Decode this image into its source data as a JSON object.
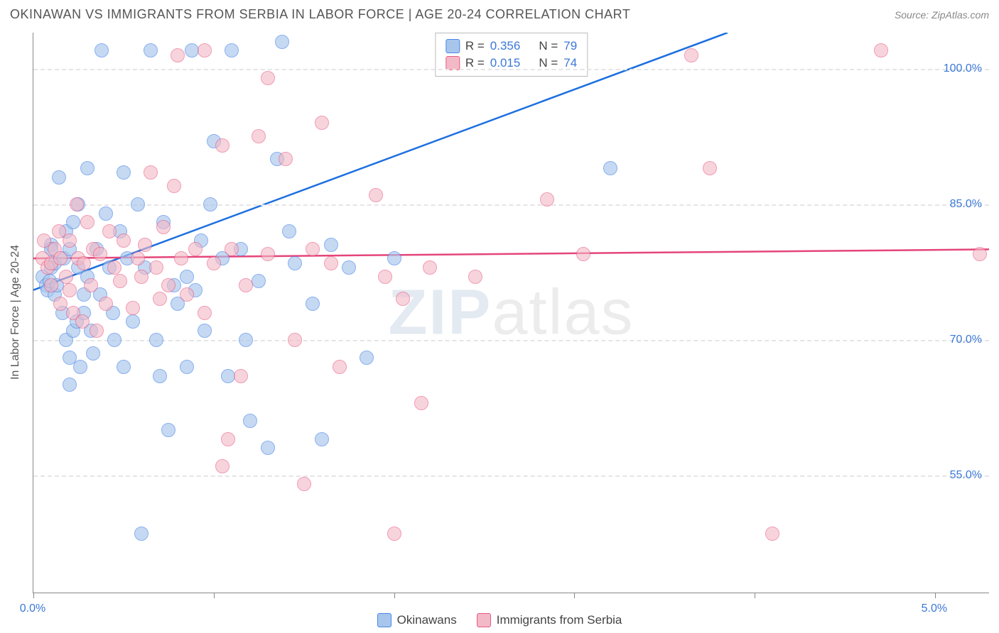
{
  "header": {
    "title": "OKINAWAN VS IMMIGRANTS FROM SERBIA IN LABOR FORCE | AGE 20-24 CORRELATION CHART",
    "source": "Source: ZipAtlas.com"
  },
  "watermark": {
    "zip": "ZIP",
    "atlas": "atlas"
  },
  "chart": {
    "type": "scatter",
    "yaxis_label": "In Labor Force | Age 20-24",
    "xlim": [
      0.0,
      5.3
    ],
    "ylim": [
      42.0,
      104.0
    ],
    "xtick_positions": [
      0.0,
      1.0,
      2.0,
      3.0,
      4.0,
      5.0
    ],
    "xtick_labels": {
      "start": "0.0%",
      "end": "5.0%"
    },
    "ytick_positions": [
      55.0,
      70.0,
      85.0,
      100.0
    ],
    "ytick_labels": [
      "55.0%",
      "70.0%",
      "85.0%",
      "100.0%"
    ],
    "grid_color": "#e5e5e5",
    "axis_color": "#888888",
    "dot_radius": 10,
    "dot_border_width": 1,
    "series": [
      {
        "name": "Okinawans",
        "fill": "#a8c6ec",
        "fill_opacity": 0.65,
        "stroke": "#4a86e8",
        "line_color": "#1c6fe0",
        "R": "0.356",
        "N": "79",
        "trend": {
          "x1": 0.0,
          "y1": 75.5,
          "x2": 3.85,
          "y2": 104.0
        },
        "points": [
          [
            0.05,
            77
          ],
          [
            0.07,
            76
          ],
          [
            0.08,
            75.5
          ],
          [
            0.09,
            76.5
          ],
          [
            0.1,
            78
          ],
          [
            0.1,
            80.5
          ],
          [
            0.1,
            80
          ],
          [
            0.12,
            78.5
          ],
          [
            0.12,
            75
          ],
          [
            0.13,
            76
          ],
          [
            0.14,
            88
          ],
          [
            0.16,
            73
          ],
          [
            0.17,
            79
          ],
          [
            0.18,
            70
          ],
          [
            0.18,
            82
          ],
          [
            0.2,
            80
          ],
          [
            0.2,
            68
          ],
          [
            0.2,
            65
          ],
          [
            0.22,
            83
          ],
          [
            0.22,
            71
          ],
          [
            0.24,
            72
          ],
          [
            0.25,
            78
          ],
          [
            0.25,
            85
          ],
          [
            0.26,
            67
          ],
          [
            0.28,
            75
          ],
          [
            0.28,
            73
          ],
          [
            0.3,
            89
          ],
          [
            0.3,
            77
          ],
          [
            0.32,
            71
          ],
          [
            0.33,
            68.5
          ],
          [
            0.35,
            80
          ],
          [
            0.37,
            75
          ],
          [
            0.38,
            102
          ],
          [
            0.4,
            84
          ],
          [
            0.42,
            78
          ],
          [
            0.44,
            73
          ],
          [
            0.45,
            70
          ],
          [
            0.48,
            82
          ],
          [
            0.5,
            67
          ],
          [
            0.5,
            88.5
          ],
          [
            0.52,
            79
          ],
          [
            0.55,
            72
          ],
          [
            0.58,
            85
          ],
          [
            0.6,
            48.5
          ],
          [
            0.62,
            78
          ],
          [
            0.65,
            102
          ],
          [
            0.68,
            70
          ],
          [
            0.7,
            66
          ],
          [
            0.72,
            83
          ],
          [
            0.75,
            60
          ],
          [
            0.78,
            76
          ],
          [
            0.8,
            74
          ],
          [
            0.85,
            67
          ],
          [
            0.85,
            77
          ],
          [
            0.88,
            102
          ],
          [
            0.9,
            75.5
          ],
          [
            0.93,
            81
          ],
          [
            0.95,
            71
          ],
          [
            0.98,
            85
          ],
          [
            1.0,
            92
          ],
          [
            1.05,
            79
          ],
          [
            1.08,
            66
          ],
          [
            1.1,
            102
          ],
          [
            1.15,
            80
          ],
          [
            1.18,
            70
          ],
          [
            1.2,
            61
          ],
          [
            1.25,
            76.5
          ],
          [
            1.3,
            58
          ],
          [
            1.35,
            90
          ],
          [
            1.38,
            103
          ],
          [
            1.42,
            82
          ],
          [
            1.45,
            78.5
          ],
          [
            1.55,
            74
          ],
          [
            1.65,
            80.5
          ],
          [
            1.75,
            78
          ],
          [
            1.85,
            68
          ],
          [
            2.0,
            79
          ],
          [
            3.2,
            89
          ],
          [
            1.6,
            59
          ]
        ]
      },
      {
        "name": "Immigants from Serbia",
        "legend_label": "Immigrants from Serbia",
        "fill": "#f3b9c6",
        "fill_opacity": 0.6,
        "stroke": "#e85a84",
        "line_color": "#e5457a",
        "R": "0.015",
        "N": "74",
        "trend": {
          "x1": 0.0,
          "y1": 79.0,
          "x2": 5.3,
          "y2": 80.0
        },
        "points": [
          [
            0.05,
            79
          ],
          [
            0.06,
            81
          ],
          [
            0.08,
            78
          ],
          [
            0.1,
            78.5
          ],
          [
            0.1,
            76
          ],
          [
            0.12,
            80
          ],
          [
            0.14,
            82
          ],
          [
            0.15,
            79
          ],
          [
            0.15,
            74
          ],
          [
            0.18,
            77
          ],
          [
            0.2,
            81
          ],
          [
            0.2,
            75.5
          ],
          [
            0.22,
            73
          ],
          [
            0.24,
            85
          ],
          [
            0.25,
            79
          ],
          [
            0.27,
            72
          ],
          [
            0.28,
            78.5
          ],
          [
            0.3,
            83
          ],
          [
            0.32,
            76
          ],
          [
            0.33,
            80
          ],
          [
            0.35,
            71
          ],
          [
            0.37,
            79.5
          ],
          [
            0.4,
            74
          ],
          [
            0.42,
            82
          ],
          [
            0.45,
            78
          ],
          [
            0.48,
            76.5
          ],
          [
            0.5,
            81
          ],
          [
            0.55,
            73.5
          ],
          [
            0.58,
            79
          ],
          [
            0.6,
            77
          ],
          [
            0.62,
            80.5
          ],
          [
            0.65,
            88.5
          ],
          [
            0.68,
            78
          ],
          [
            0.7,
            74.5
          ],
          [
            0.72,
            82.5
          ],
          [
            0.75,
            76
          ],
          [
            0.78,
            87
          ],
          [
            0.82,
            79
          ],
          [
            0.8,
            101.5
          ],
          [
            0.85,
            75
          ],
          [
            0.9,
            80
          ],
          [
            0.95,
            73
          ],
          [
            0.95,
            102
          ],
          [
            1.0,
            78.5
          ],
          [
            1.05,
            91.5
          ],
          [
            1.05,
            56
          ],
          [
            1.08,
            59
          ],
          [
            1.1,
            80
          ],
          [
            1.15,
            66
          ],
          [
            1.18,
            76
          ],
          [
            1.25,
            92.5
          ],
          [
            1.3,
            79.5
          ],
          [
            1.3,
            99
          ],
          [
            1.4,
            90
          ],
          [
            1.45,
            70
          ],
          [
            1.5,
            54
          ],
          [
            1.55,
            80
          ],
          [
            1.6,
            94
          ],
          [
            1.65,
            78.5
          ],
          [
            1.7,
            67
          ],
          [
            1.9,
            86
          ],
          [
            1.95,
            77
          ],
          [
            2.0,
            48.5
          ],
          [
            2.05,
            74.5
          ],
          [
            2.15,
            63
          ],
          [
            2.2,
            78
          ],
          [
            2.45,
            77
          ],
          [
            2.85,
            85.5
          ],
          [
            3.05,
            79.5
          ],
          [
            3.65,
            101.5
          ],
          [
            3.75,
            89
          ],
          [
            4.1,
            48.5
          ],
          [
            4.7,
            102
          ],
          [
            5.25,
            79.5
          ]
        ]
      }
    ]
  },
  "legend_top": {
    "r_label": "R =",
    "n_label": "N ="
  },
  "legend_bottom": {
    "label1": "Okinawans",
    "label2": "Immigrants from Serbia"
  }
}
